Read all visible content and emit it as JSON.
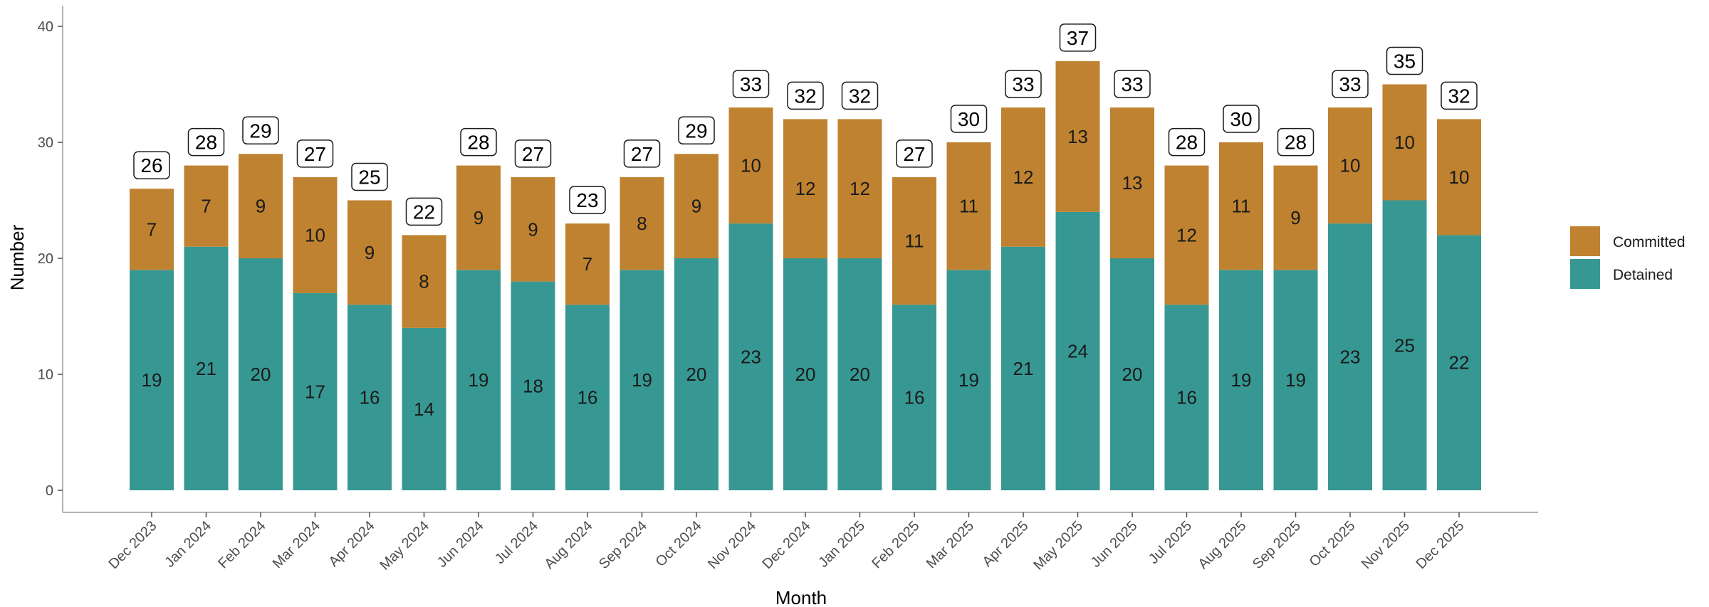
{
  "chart_data": {
    "type": "bar",
    "stacked": true,
    "xlabel": "Month",
    "ylabel": "Number",
    "ylim": [
      0,
      41
    ],
    "yticks": [
      0,
      10,
      20,
      30,
      40
    ],
    "grid": false,
    "legend_position": "right",
    "categories": [
      "Dec 2023",
      "Jan 2024",
      "Feb 2024",
      "Mar 2024",
      "Apr 2024",
      "May 2024",
      "Jun 2024",
      "Jul 2024",
      "Aug 2024",
      "Sep 2024",
      "Oct 2024",
      "Nov 2024",
      "Dec 2024",
      "Jan 2025",
      "Feb 2025",
      "Mar 2025",
      "Apr 2025",
      "May 2025",
      "Jun 2025",
      "Jul 2025",
      "Aug 2025",
      "Sep 2025",
      "Oct 2025",
      "Nov 2025",
      "Dec 2025"
    ],
    "series": [
      {
        "name": "Detained",
        "color": "#379893",
        "values": [
          19,
          21,
          20,
          17,
          16,
          14,
          19,
          18,
          16,
          19,
          20,
          23,
          20,
          20,
          16,
          19,
          21,
          24,
          20,
          16,
          19,
          19,
          23,
          25,
          22
        ]
      },
      {
        "name": "Committed",
        "color": "#bf8230",
        "values": [
          7,
          7,
          9,
          10,
          9,
          8,
          9,
          9,
          7,
          8,
          9,
          10,
          12,
          12,
          11,
          11,
          12,
          13,
          13,
          12,
          11,
          9,
          10,
          10,
          10
        ]
      }
    ],
    "totals": [
      26,
      28,
      29,
      27,
      25,
      22,
      28,
      27,
      23,
      27,
      29,
      33,
      32,
      32,
      27,
      30,
      33,
      37,
      33,
      28,
      30,
      28,
      33,
      35,
      32
    ],
    "legend_order": [
      "Committed",
      "Detained"
    ]
  }
}
